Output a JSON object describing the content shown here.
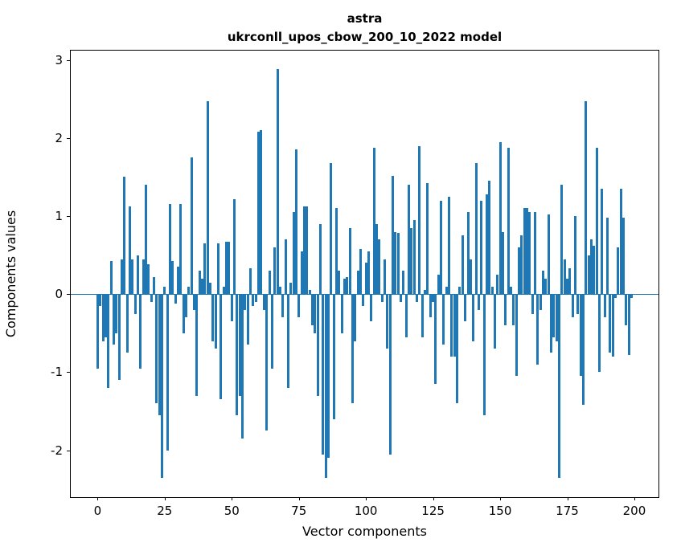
{
  "title_line1": "astra",
  "title_line2": "ukrconll_upos_cbow_200_10_2022 model",
  "chart_data": {
    "type": "bar",
    "title": "astra — ukrconll_upos_cbow_200_10_2022 model",
    "xlabel": "Vector components",
    "ylabel": "Components values",
    "xlim": [
      -10,
      209
    ],
    "ylim": [
      -2.6,
      3.12
    ],
    "x_ticks": [
      0,
      25,
      50,
      75,
      100,
      125,
      150,
      175,
      200
    ],
    "y_ticks": [
      3,
      2,
      1,
      0,
      -1,
      -2
    ],
    "bar_color": "#1f77b4",
    "bar_width_units": 0.9,
    "grid": false,
    "legend": "none",
    "x_start_index": 0,
    "values": [
      -0.95,
      -0.15,
      -0.6,
      -0.55,
      -1.2,
      0.42,
      -0.65,
      -0.5,
      -1.1,
      0.45,
      1.5,
      -0.75,
      1.12,
      0.45,
      -0.25,
      0.5,
      -0.95,
      0.45,
      1.4,
      0.38,
      -0.1,
      0.22,
      -1.4,
      -1.55,
      -2.35,
      0.1,
      -2.0,
      1.15,
      0.42,
      -0.12,
      0.35,
      1.15,
      -0.5,
      -0.3,
      0.1,
      1.75,
      -0.2,
      -1.3,
      0.3,
      0.2,
      0.65,
      2.47,
      0.15,
      -0.6,
      -0.7,
      0.65,
      -1.35,
      0.1,
      0.67,
      0.67,
      -0.35,
      1.22,
      -1.55,
      -1.3,
      -1.85,
      -0.2,
      -0.65,
      0.33,
      -0.15,
      -0.1,
      2.08,
      2.1,
      -0.2,
      -1.75,
      0.3,
      -0.95,
      0.6,
      2.88,
      0.1,
      -0.3,
      0.7,
      -1.2,
      0.15,
      1.05,
      1.85,
      -0.3,
      0.55,
      1.12,
      1.12,
      0.05,
      -0.4,
      -0.5,
      -1.3,
      0.9,
      -2.05,
      -2.35,
      -2.1,
      1.68,
      -1.6,
      1.1,
      0.3,
      -0.5,
      0.2,
      0.22,
      0.85,
      -1.4,
      -0.6,
      0.3,
      0.58,
      -0.15,
      0.4,
      0.55,
      -0.35,
      1.88,
      0.9,
      0.7,
      -0.1,
      0.45,
      -0.7,
      -2.05,
      1.52,
      0.8,
      0.78,
      -0.1,
      0.3,
      -0.55,
      1.4,
      0.85,
      0.95,
      -0.1,
      1.9,
      -0.55,
      0.05,
      1.42,
      -0.3,
      -0.1,
      -1.15,
      0.25,
      1.2,
      -0.65,
      0.1,
      1.25,
      -0.8,
      -0.8,
      -1.4,
      0.1,
      0.75,
      -0.35,
      1.05,
      0.45,
      -0.6,
      1.68,
      -0.2,
      1.2,
      -1.55,
      1.28,
      1.45,
      0.1,
      -0.7,
      0.25,
      1.95,
      0.8,
      -0.4,
      1.88,
      0.1,
      -0.4,
      -1.05,
      0.6,
      0.75,
      1.1,
      1.1,
      1.05,
      -0.25,
      1.05,
      -0.9,
      -0.2,
      0.3,
      0.2,
      1.02,
      -0.75,
      -0.55,
      -0.6,
      -2.35,
      1.4,
      0.45,
      0.2,
      0.33,
      -0.3,
      1.0,
      -0.25,
      -1.05,
      -1.42,
      2.47,
      0.5,
      0.7,
      0.62,
      1.88,
      -1.0,
      1.35,
      -0.3,
      0.98,
      -0.75,
      -0.8,
      -0.05,
      0.6,
      1.35,
      0.98,
      -0.4,
      -0.78,
      -0.05
    ]
  }
}
